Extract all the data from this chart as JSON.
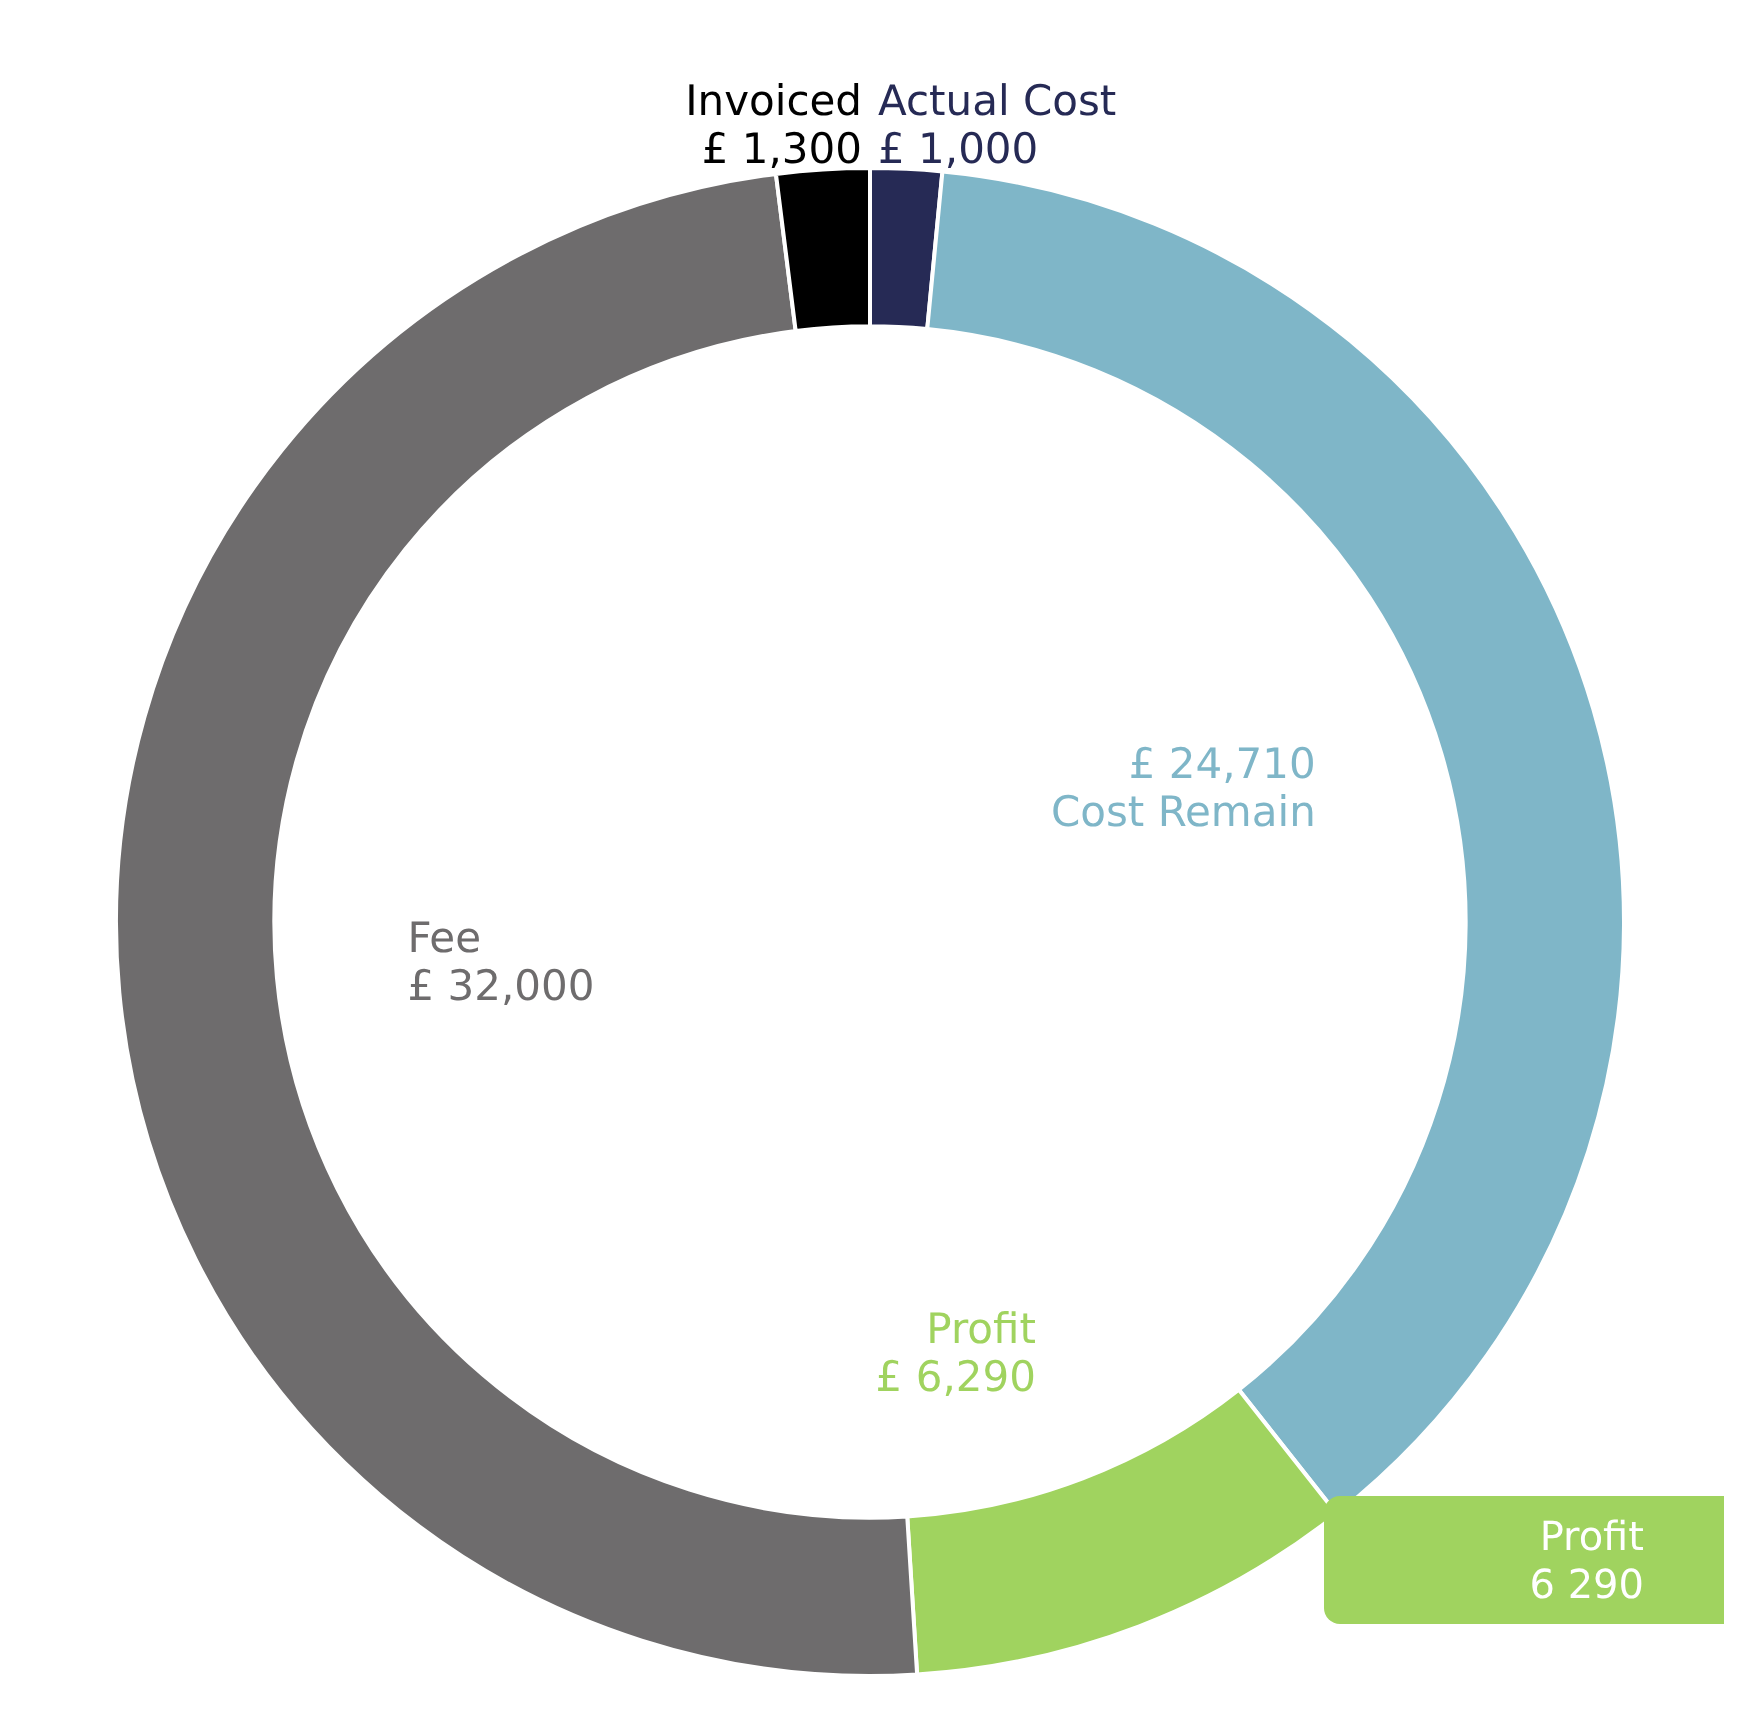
{
  "chart_data": {
    "type": "donut",
    "categories": [
      "Actual Cost",
      "Cost Remain",
      "Profit",
      "Fee",
      "Invoiced"
    ],
    "values": [
      1000,
      24710,
      6290,
      32000,
      1300
    ],
    "value_labels": [
      "£ 1,000",
      "£ 24,710",
      "£ 6,290",
      "£ 32,000",
      "£ 1,300"
    ],
    "colors": [
      "#262a55",
      "#7fb6c8",
      "#a0d35f",
      "#6e6c6d",
      "#000000"
    ],
    "legend": false,
    "annotations": [
      "Profit\n6 290"
    ]
  }
}
